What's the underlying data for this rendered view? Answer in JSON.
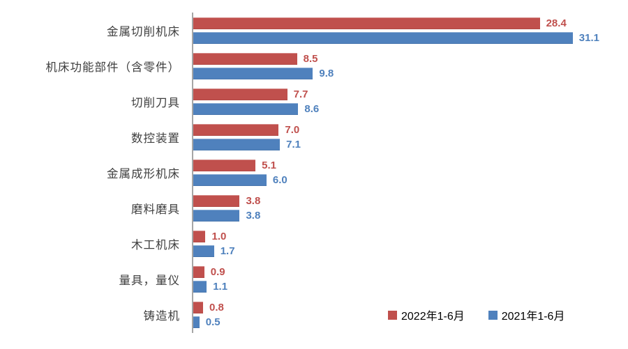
{
  "chart_data": {
    "type": "bar",
    "orientation": "horizontal",
    "title": "",
    "xlabel": "",
    "ylabel": "",
    "xlim": [
      0,
      35
    ],
    "grid": false,
    "legend_position": "bottom-right",
    "value_labels": true,
    "value_label_decimals": 1,
    "categories": [
      "金属切削机床",
      "机床功能部件（含零件）",
      "切削刀具",
      "数控装置",
      "金属成形机床",
      "磨料磨具",
      "木工机床",
      "量具，量仪",
      "铸造机"
    ],
    "series": [
      {
        "name": "2022年1-6月",
        "color": "#C0504D",
        "values": [
          28.4,
          8.5,
          7.7,
          7.0,
          5.1,
          3.8,
          1.0,
          0.9,
          0.8
        ]
      },
      {
        "name": "2021年1-6月",
        "color": "#4F81BD",
        "values": [
          31.1,
          9.8,
          8.6,
          7.1,
          6.0,
          3.8,
          1.7,
          1.1,
          0.5
        ]
      }
    ],
    "colors": {
      "axis_line": "#A6A6A6",
      "category_label": "#3F3F3F",
      "legend_text": "#000000"
    }
  }
}
